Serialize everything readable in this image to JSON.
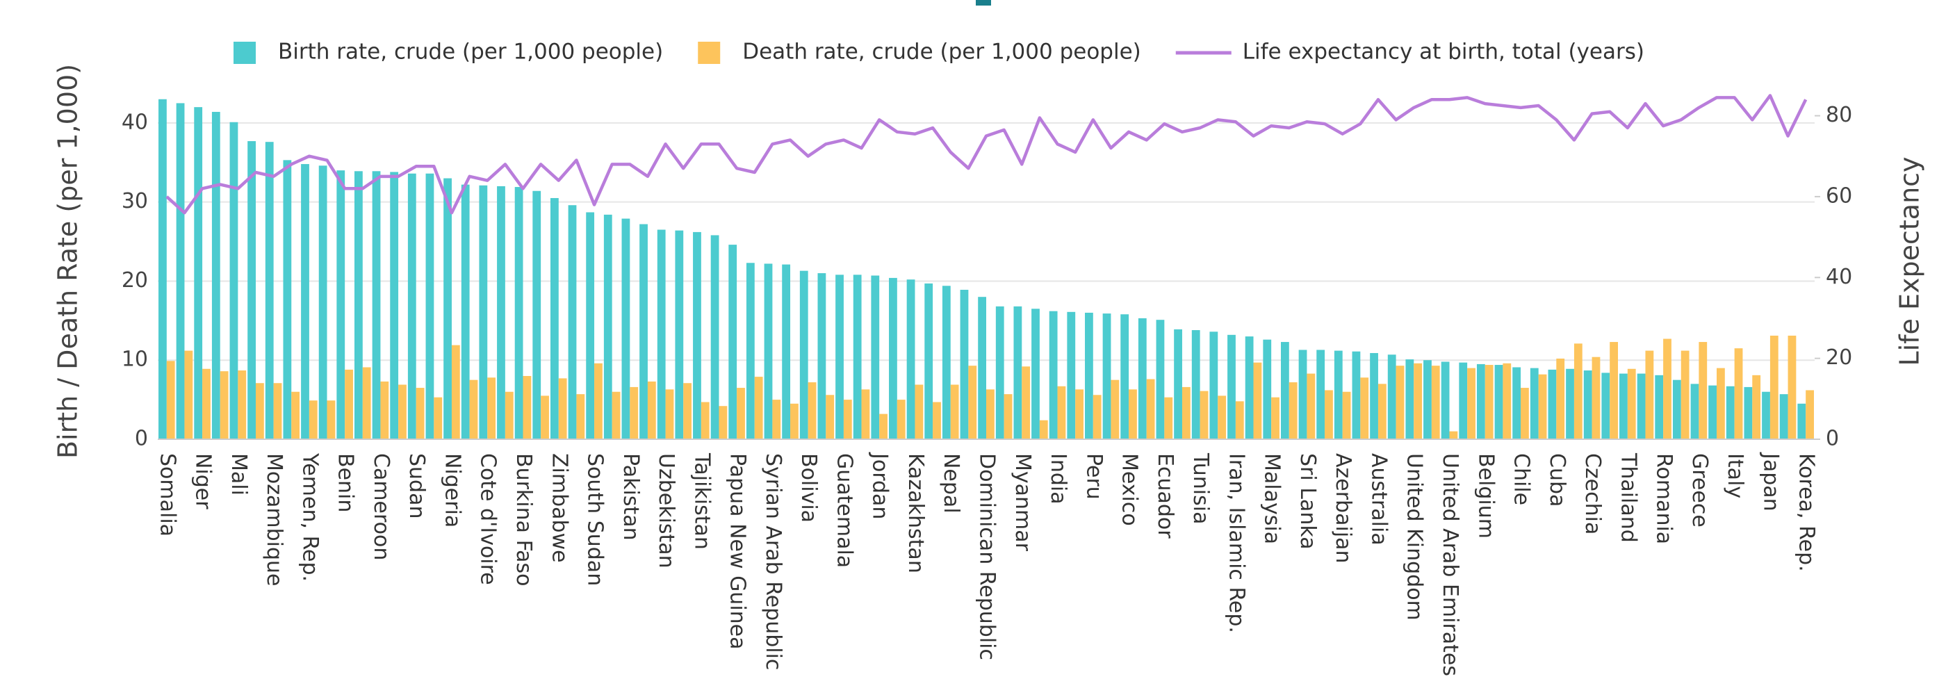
{
  "chart_data": {
    "type": "bar",
    "categories": [
      "Somalia",
      null,
      "Niger",
      null,
      "Mali",
      null,
      "Mozambique",
      null,
      "Yemen, Rep.",
      null,
      "Benin",
      null,
      "Cameroon",
      null,
      "Sudan",
      null,
      "Nigeria",
      null,
      "Cote d'Ivoire",
      null,
      "Burkina Faso",
      null,
      "Zimbabwe",
      null,
      "South Sudan",
      null,
      "Pakistan",
      null,
      "Uzbekistan",
      null,
      "Tajikistan",
      null,
      "Papua New Guinea",
      null,
      "Syrian Arab Republic",
      null,
      "Bolivia",
      null,
      "Guatemala",
      null,
      "Jordan",
      null,
      "Kazakhstan",
      null,
      "Nepal",
      null,
      "Dominican Republic",
      null,
      "Myanmar",
      null,
      "India",
      null,
      "Peru",
      null,
      "Mexico",
      null,
      "Ecuador",
      null,
      "Tunisia",
      null,
      "Iran, Islamic Rep.",
      null,
      "Malaysia",
      null,
      "Sri Lanka",
      null,
      "Azerbaijan",
      null,
      "Australia",
      null,
      "United Kingdom",
      null,
      "United Arab Emirates",
      null,
      "Belgium",
      null,
      "Chile",
      null,
      "Cuba",
      null,
      "Czechia",
      null,
      "Thailand",
      null,
      "Romania",
      null,
      "Greece",
      null,
      "Italy",
      null,
      "Japan",
      null,
      "Korea, Rep."
    ],
    "series": [
      {
        "name": "Birth rate, crude (per 1,000 people)",
        "type": "bar",
        "color": "#4ccbcf",
        "values": [
          43.0,
          42.5,
          42.0,
          41.4,
          40.1,
          37.7,
          37.6,
          35.3,
          34.8,
          34.6,
          34.0,
          33.9,
          33.9,
          33.8,
          33.6,
          33.6,
          33.0,
          32.2,
          32.1,
          32.0,
          31.9,
          31.4,
          30.5,
          29.6,
          28.7,
          28.4,
          27.9,
          27.2,
          26.5,
          26.4,
          26.2,
          25.8,
          24.6,
          22.3,
          22.2,
          22.1,
          21.3,
          21.0,
          20.8,
          20.8,
          20.7,
          20.4,
          20.2,
          19.7,
          19.4,
          18.9,
          18.0,
          16.8,
          16.8,
          16.5,
          16.2,
          16.1,
          16.0,
          15.9,
          15.8,
          15.3,
          15.1,
          13.9,
          13.8,
          13.6,
          13.2,
          13.0,
          12.6,
          12.3,
          11.3,
          11.3,
          11.2,
          11.1,
          10.9,
          10.7,
          10.1,
          10.0,
          9.8,
          9.7,
          9.5,
          9.4,
          9.1,
          9.0,
          8.8,
          8.9,
          8.7,
          8.4,
          8.3,
          8.3,
          8.1,
          7.5,
          7.0,
          6.8,
          6.7,
          6.6,
          6.0,
          5.7,
          4.5
        ]
      },
      {
        "name": "Death rate, crude (per 1,000 people)",
        "type": "bar",
        "color": "#fdc45c",
        "values": [
          9.9,
          11.2,
          8.9,
          8.6,
          8.7,
          7.1,
          7.1,
          6.0,
          4.9,
          4.9,
          8.8,
          9.1,
          7.3,
          6.9,
          6.5,
          5.3,
          11.9,
          7.5,
          7.8,
          6.0,
          8.0,
          5.5,
          7.7,
          5.7,
          9.6,
          6.0,
          6.6,
          7.3,
          6.3,
          7.1,
          4.7,
          4.2,
          6.5,
          7.9,
          5.0,
          4.5,
          7.2,
          5.6,
          5.0,
          6.3,
          3.2,
          5.0,
          6.9,
          4.7,
          6.9,
          9.3,
          6.3,
          5.7,
          9.2,
          2.4,
          6.7,
          6.3,
          5.6,
          7.5,
          6.3,
          7.6,
          5.3,
          6.6,
          6.1,
          5.5,
          4.8,
          9.7,
          5.3,
          7.2,
          8.3,
          6.2,
          6.0,
          7.8,
          7.0,
          9.3,
          9.6,
          9.3,
          1.0,
          9.0,
          9.4,
          9.6,
          6.5,
          8.2,
          10.2,
          12.1,
          10.4,
          12.3,
          8.9,
          11.2,
          12.7,
          11.2,
          12.3,
          9.0,
          11.5,
          8.1,
          13.1,
          13.1,
          6.2
        ]
      },
      {
        "name": "Life expectancy at birth, total (years)",
        "type": "line",
        "axis": "y2",
        "color": "#b97ddb",
        "values": [
          60,
          56,
          62,
          63,
          62,
          66,
          65,
          68,
          70,
          69,
          62,
          62,
          65,
          65,
          67.5,
          67.5,
          56,
          65,
          64,
          68,
          62,
          68,
          64,
          69,
          58,
          68,
          68,
          65,
          73,
          67,
          73,
          73,
          67,
          66,
          73,
          74,
          70,
          73,
          74,
          72,
          79,
          76,
          75.5,
          77,
          71,
          67,
          75,
          76.5,
          68,
          79.5,
          73,
          71,
          79,
          72,
          76,
          74,
          78,
          76,
          77,
          79,
          78.5,
          75,
          77.5,
          77,
          78.5,
          78,
          75.5,
          78,
          84,
          79,
          82,
          84,
          84,
          84.5,
          83,
          82.5,
          82,
          82.5,
          79,
          74,
          80.5,
          81,
          77,
          83,
          77.5,
          79,
          82,
          84.5,
          84.5,
          79,
          85,
          75,
          84
        ]
      }
    ],
    "y_label": "Birth / Death Rate (per 1,000)",
    "y2_label": "Life Expectancy",
    "ylim": [
      0,
      45
    ],
    "yticks": [
      0,
      10,
      20,
      30,
      40
    ],
    "y2lim": [
      0,
      88
    ],
    "y2ticks": [
      0,
      20,
      40,
      60,
      80
    ],
    "grid": true,
    "legend": "top"
  }
}
